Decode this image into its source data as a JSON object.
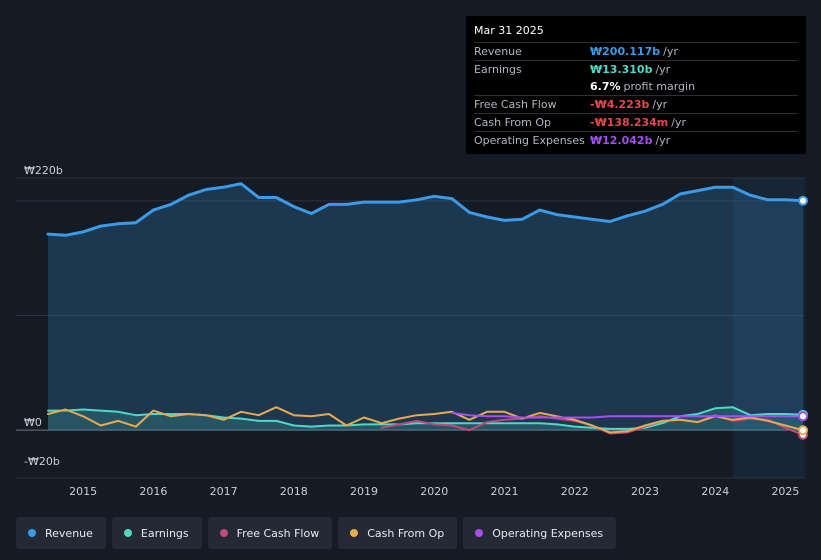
{
  "tooltip": {
    "date": "Mar 31 2025",
    "rows": [
      {
        "label": "Revenue",
        "value": "₩200.117b",
        "unit": "/yr",
        "color": "#3b9be8"
      },
      {
        "label": "Earnings",
        "value": "₩13.310b",
        "unit": "/yr",
        "color": "#4fd8c6"
      },
      {
        "label": "",
        "value": "6.7%",
        "unit": "profit margin",
        "color": "#ffffff"
      },
      {
        "label": "Free Cash Flow",
        "value": "-₩4.223b",
        "unit": "/yr",
        "color": "#e5484d"
      },
      {
        "label": "Cash From Op",
        "value": "-₩138.234m",
        "unit": "/yr",
        "color": "#e5484d"
      },
      {
        "label": "Operating Expenses",
        "value": "₩12.042b",
        "unit": "/yr",
        "color": "#a64ef0"
      }
    ]
  },
  "legend": [
    {
      "label": "Revenue",
      "color": "#3b9be8"
    },
    {
      "label": "Earnings",
      "color": "#4fd8c6"
    },
    {
      "label": "Free Cash Flow",
      "color": "#c4477a"
    },
    {
      "label": "Cash From Op",
      "color": "#e8a94f"
    },
    {
      "label": "Operating Expenses",
      "color": "#a64ef0"
    }
  ],
  "chart_data": {
    "type": "line",
    "title": "",
    "xlabel": "",
    "ylabel": "",
    "currency_unit": "b",
    "xlim": [
      2014.5,
      2025.25
    ],
    "ylim": [
      -20,
      220
    ],
    "y_ticks": [
      {
        "value": 220,
        "label": "₩220b"
      },
      {
        "value": 0,
        "label": "₩0"
      },
      {
        "value": -20,
        "label": "-₩20b"
      }
    ],
    "x_ticks": [
      "2015",
      "2016",
      "2017",
      "2018",
      "2019",
      "2020",
      "2021",
      "2022",
      "2023",
      "2024",
      "2025"
    ],
    "x_tick_values": [
      2015,
      2016,
      2017,
      2018,
      2019,
      2020,
      2021,
      2022,
      2023,
      2024,
      2025
    ],
    "forecast_shade_start": 2024.25,
    "series": [
      {
        "name": "Revenue",
        "color": "#3b9be8",
        "area": true,
        "points": [
          [
            2014.5,
            171
          ],
          [
            2014.75,
            170
          ],
          [
            2015.0,
            173
          ],
          [
            2015.25,
            178
          ],
          [
            2015.5,
            180
          ],
          [
            2015.75,
            181
          ],
          [
            2016.0,
            192
          ],
          [
            2016.25,
            197
          ],
          [
            2016.5,
            205
          ],
          [
            2016.75,
            210
          ],
          [
            2017.0,
            212
          ],
          [
            2017.25,
            215
          ],
          [
            2017.5,
            203
          ],
          [
            2017.75,
            203
          ],
          [
            2018.0,
            195
          ],
          [
            2018.25,
            189
          ],
          [
            2018.5,
            197
          ],
          [
            2018.75,
            197
          ],
          [
            2019.0,
            199
          ],
          [
            2019.25,
            199
          ],
          [
            2019.5,
            199
          ],
          [
            2019.75,
            201
          ],
          [
            2020.0,
            204
          ],
          [
            2020.25,
            202
          ],
          [
            2020.5,
            190
          ],
          [
            2020.75,
            186
          ],
          [
            2021.0,
            183
          ],
          [
            2021.25,
            184
          ],
          [
            2021.5,
            192
          ],
          [
            2021.75,
            188
          ],
          [
            2022.0,
            186
          ],
          [
            2022.25,
            184
          ],
          [
            2022.5,
            182
          ],
          [
            2022.75,
            187
          ],
          [
            2023.0,
            191
          ],
          [
            2023.25,
            197
          ],
          [
            2023.5,
            206
          ],
          [
            2023.75,
            209
          ],
          [
            2024.0,
            212
          ],
          [
            2024.25,
            212
          ],
          [
            2024.5,
            205
          ],
          [
            2024.75,
            201
          ],
          [
            2025.0,
            201
          ],
          [
            2025.25,
            200.1
          ]
        ]
      },
      {
        "name": "Earnings",
        "color": "#4fd8c6",
        "area": true,
        "points": [
          [
            2014.5,
            17
          ],
          [
            2014.75,
            17
          ],
          [
            2015.0,
            18
          ],
          [
            2015.25,
            17
          ],
          [
            2015.5,
            16
          ],
          [
            2015.75,
            13
          ],
          [
            2016.0,
            14
          ],
          [
            2016.25,
            14
          ],
          [
            2016.5,
            14
          ],
          [
            2016.75,
            13
          ],
          [
            2017.0,
            11
          ],
          [
            2017.25,
            10
          ],
          [
            2017.5,
            8
          ],
          [
            2017.75,
            8
          ],
          [
            2018.0,
            4
          ],
          [
            2018.25,
            3
          ],
          [
            2018.5,
            4
          ],
          [
            2018.75,
            4
          ],
          [
            2019.0,
            5
          ],
          [
            2019.25,
            5
          ],
          [
            2019.5,
            5
          ],
          [
            2019.75,
            6
          ],
          [
            2020.0,
            6
          ],
          [
            2020.25,
            6
          ],
          [
            2020.5,
            6
          ],
          [
            2020.75,
            6
          ],
          [
            2021.0,
            6
          ],
          [
            2021.25,
            6
          ],
          [
            2021.5,
            6
          ],
          [
            2021.75,
            5
          ],
          [
            2022.0,
            3
          ],
          [
            2022.25,
            2
          ],
          [
            2022.5,
            1
          ],
          [
            2022.75,
            1
          ],
          [
            2023.0,
            2
          ],
          [
            2023.25,
            6
          ],
          [
            2023.5,
            12
          ],
          [
            2023.75,
            14
          ],
          [
            2024.0,
            19
          ],
          [
            2024.25,
            20
          ],
          [
            2024.5,
            13
          ],
          [
            2024.75,
            14
          ],
          [
            2025.0,
            14
          ],
          [
            2025.25,
            13.3
          ]
        ]
      },
      {
        "name": "Free Cash Flow",
        "color": "#c4477a",
        "area": false,
        "points": [
          [
            2019.25,
            2
          ],
          [
            2019.5,
            5
          ],
          [
            2019.75,
            8
          ],
          [
            2020.0,
            5
          ],
          [
            2020.25,
            4
          ],
          [
            2020.5,
            0
          ],
          [
            2020.75,
            7
          ],
          [
            2021.0,
            9
          ],
          [
            2021.25,
            10
          ],
          [
            2021.5,
            12
          ],
          [
            2021.75,
            10
          ],
          [
            2022.0,
            8
          ],
          [
            2022.25,
            4
          ],
          [
            2022.5,
            -3
          ],
          [
            2022.75,
            -2
          ],
          [
            2023.0,
            3
          ],
          [
            2023.25,
            8
          ],
          [
            2023.5,
            9
          ],
          [
            2023.75,
            7
          ],
          [
            2024.0,
            13
          ],
          [
            2024.25,
            8
          ],
          [
            2024.5,
            10
          ],
          [
            2024.75,
            9
          ],
          [
            2025.0,
            2
          ],
          [
            2025.25,
            -4.2
          ]
        ]
      },
      {
        "name": "Cash From Op",
        "color": "#e8a94f",
        "area": false,
        "points": [
          [
            2014.5,
            14
          ],
          [
            2014.75,
            18
          ],
          [
            2015.0,
            12
          ],
          [
            2015.25,
            4
          ],
          [
            2015.5,
            8
          ],
          [
            2015.75,
            3
          ],
          [
            2016.0,
            17
          ],
          [
            2016.25,
            12
          ],
          [
            2016.5,
            14
          ],
          [
            2016.75,
            13
          ],
          [
            2017.0,
            9
          ],
          [
            2017.25,
            16
          ],
          [
            2017.5,
            13
          ],
          [
            2017.75,
            20
          ],
          [
            2018.0,
            13
          ],
          [
            2018.25,
            12
          ],
          [
            2018.5,
            14
          ],
          [
            2018.75,
            4
          ],
          [
            2019.0,
            11
          ],
          [
            2019.25,
            6
          ],
          [
            2019.5,
            10
          ],
          [
            2019.75,
            13
          ],
          [
            2020.0,
            14
          ],
          [
            2020.25,
            16
          ],
          [
            2020.5,
            9
          ],
          [
            2020.75,
            16
          ],
          [
            2021.0,
            16
          ],
          [
            2021.25,
            10
          ],
          [
            2021.5,
            15
          ],
          [
            2021.75,
            12
          ],
          [
            2022.0,
            9
          ],
          [
            2022.25,
            4
          ],
          [
            2022.5,
            -2
          ],
          [
            2022.75,
            -1
          ],
          [
            2023.0,
            4
          ],
          [
            2023.25,
            8
          ],
          [
            2023.5,
            9
          ],
          [
            2023.75,
            7
          ],
          [
            2024.0,
            12
          ],
          [
            2024.25,
            9
          ],
          [
            2024.5,
            11
          ],
          [
            2024.75,
            8
          ],
          [
            2025.0,
            4
          ],
          [
            2025.25,
            -0.14
          ]
        ]
      },
      {
        "name": "Operating Expenses",
        "color": "#a64ef0",
        "area": false,
        "points": [
          [
            2020.25,
            15
          ],
          [
            2020.5,
            13
          ],
          [
            2020.75,
            12
          ],
          [
            2021.0,
            12
          ],
          [
            2021.25,
            11
          ],
          [
            2021.5,
            11
          ],
          [
            2021.75,
            11
          ],
          [
            2022.0,
            11
          ],
          [
            2022.25,
            11
          ],
          [
            2022.5,
            12
          ],
          [
            2022.75,
            12
          ],
          [
            2023.0,
            12
          ],
          [
            2023.25,
            12
          ],
          [
            2023.5,
            12
          ],
          [
            2023.75,
            12
          ],
          [
            2024.0,
            12
          ],
          [
            2024.25,
            12
          ],
          [
            2024.5,
            12
          ],
          [
            2024.75,
            12
          ],
          [
            2025.0,
            12
          ],
          [
            2025.25,
            12.04
          ]
        ]
      }
    ]
  }
}
